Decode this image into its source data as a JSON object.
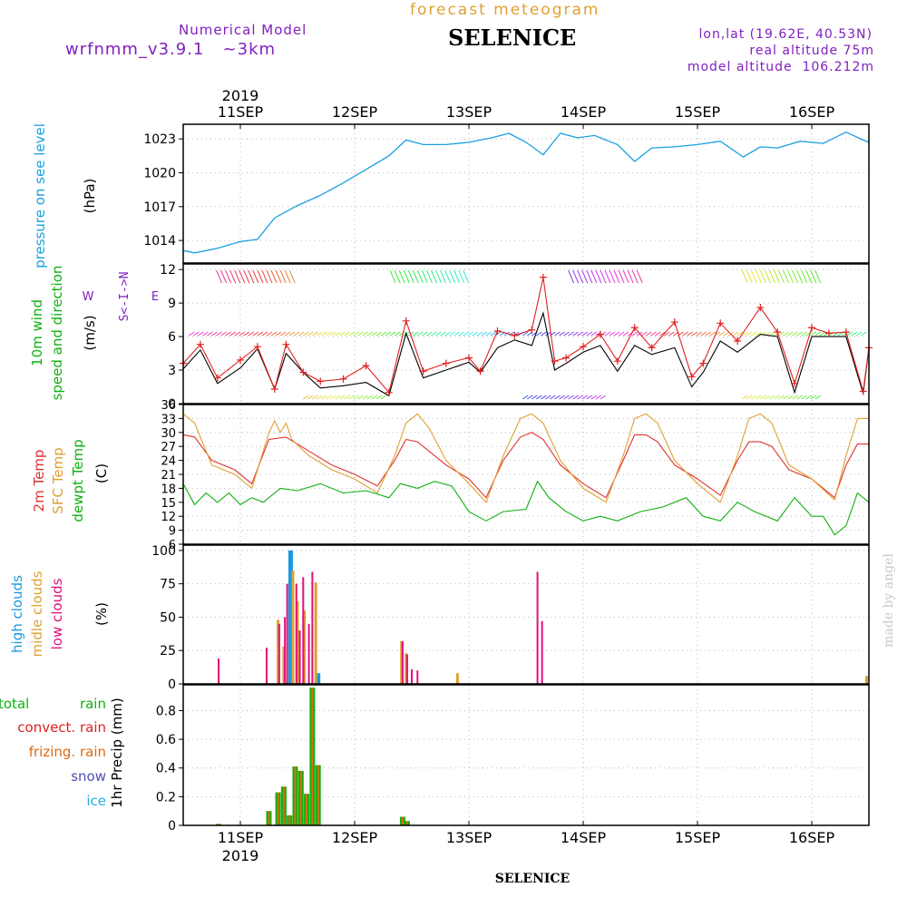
{
  "header": {
    "model_label": "Numerical Model",
    "model_version": "wrfnmm_v3.9.1   ~3km",
    "product": "forecast meteogram",
    "station": "SELENICE",
    "lonlat": "lon,lat (19.62E, 40.53N)",
    "real_altitude": "real altitude 75m",
    "model_altitude": "model altitude  106.212m"
  },
  "footer": {
    "station": "SELENICE",
    "credit": "made by angel"
  },
  "time_axis": {
    "year": "2019",
    "start_day": 10.5,
    "end_day": 16.5,
    "ticks": [
      {
        "day": 11,
        "label": "11SEP"
      },
      {
        "day": 12,
        "label": "12SEP"
      },
      {
        "day": 13,
        "label": "13SEP"
      },
      {
        "day": 14,
        "label": "14SEP"
      },
      {
        "day": 15,
        "label": "15SEP"
      },
      {
        "day": 16,
        "label": "16SEP"
      }
    ]
  },
  "colors": {
    "pressure": "#1aa0e0",
    "wind_label": "#10b010",
    "gust": "#e02020",
    "temp2m": "#e03030",
    "sfc_temp": "#e0a030",
    "dewpt": "#10b010",
    "high_clouds": "#1a9ae0",
    "mid_clouds": "#e0a030",
    "low_clouds": "#e0107a",
    "total_rain": "#10b010",
    "convect_rain": "#e02020",
    "frizing_rain": "#e06a10",
    "snow": "#5050b0",
    "ice": "#20b0e0",
    "purple": "#8020c0",
    "title_gold": "#e0a030"
  },
  "chart_data": [
    {
      "type": "line",
      "title": "pressure on see level",
      "ylabel": "(hPa)",
      "ylim": [
        1012,
        1024.3
      ],
      "yticks": [
        1014,
        1017,
        1020,
        1023
      ],
      "x": [
        10.5,
        10.6,
        10.8,
        11.0,
        11.15,
        11.3,
        11.5,
        11.7,
        11.9,
        12.1,
        12.3,
        12.45,
        12.6,
        12.8,
        13.0,
        13.2,
        13.35,
        13.5,
        13.65,
        13.8,
        13.95,
        14.1,
        14.3,
        14.45,
        14.6,
        14.8,
        15.0,
        15.2,
        15.4,
        15.55,
        15.7,
        15.9,
        16.1,
        16.3,
        16.45,
        16.5
      ],
      "series": [
        {
          "values": [
            1013.1,
            1012.9,
            1013.3,
            1013.9,
            1014.1,
            1016.0,
            1017.1,
            1018.0,
            1019.1,
            1020.3,
            1021.5,
            1022.9,
            1022.5,
            1022.5,
            1022.7,
            1023.1,
            1023.5,
            1022.7,
            1021.6,
            1023.5,
            1023.1,
            1023.3,
            1022.5,
            1021.0,
            1022.2,
            1022.3,
            1022.5,
            1022.8,
            1021.4,
            1022.3,
            1022.2,
            1022.8,
            1022.6,
            1023.6,
            1022.9,
            1022.7
          ]
        }
      ]
    },
    {
      "type": "line",
      "title": "10m wind speed and direction",
      "ylabel": "(m/s)",
      "ylim": [
        0,
        12.5
      ],
      "yticks": [
        0,
        3,
        6,
        9,
        12
      ],
      "compass": [
        "N",
        "W",
        "E",
        "S"
      ],
      "x": [
        10.5,
        10.65,
        10.8,
        11.0,
        11.15,
        11.3,
        11.4,
        11.55,
        11.7,
        11.9,
        12.1,
        12.3,
        12.45,
        12.6,
        12.8,
        13.0,
        13.1,
        13.25,
        13.4,
        13.55,
        13.65,
        13.75,
        13.85,
        14.0,
        14.15,
        14.3,
        14.45,
        14.6,
        14.8,
        14.95,
        15.05,
        15.2,
        15.35,
        15.55,
        15.7,
        15.85,
        16.0,
        16.15,
        16.3,
        16.45,
        16.5
      ],
      "series": [
        {
          "values": [
            3.1,
            4.8,
            1.8,
            3.2,
            4.9,
            1.3,
            4.5,
            2.8,
            1.4,
            1.6,
            1.9,
            0.7,
            6.3,
            2.3,
            3.0,
            3.7,
            2.8,
            5.0,
            5.7,
            5.2,
            8.1,
            3.0,
            3.6,
            4.6,
            5.2,
            2.9,
            5.2,
            4.4,
            5.0,
            1.5,
            2.8,
            5.6,
            4.6,
            6.2,
            6.0,
            1.0,
            6.0,
            6.0,
            6.0,
            0.9,
            5.0
          ]
        },
        {
          "values": [
            3.6,
            5.3,
            2.3,
            3.9,
            5.1,
            1.3,
            5.3,
            2.8,
            2.0,
            2.2,
            3.4,
            1.0,
            7.4,
            2.9,
            3.6,
            4.1,
            2.9,
            6.5,
            6.1,
            6.6,
            11.3,
            3.8,
            4.1,
            5.1,
            6.2,
            3.8,
            6.8,
            5.0,
            7.3,
            2.4,
            3.6,
            7.2,
            5.6,
            8.6,
            6.4,
            1.8,
            6.8,
            6.3,
            6.4,
            1.1,
            5.0
          ]
        }
      ]
    },
    {
      "type": "line",
      "title": "2m Temp / SFC Temp / dewpt Temp",
      "ylabel": "(C)",
      "ylim": [
        6,
        36
      ],
      "yticks": [
        6,
        9,
        12,
        15,
        18,
        21,
        24,
        27,
        30,
        33,
        36
      ],
      "series": [
        {
          "name": "2m Temp",
          "x": [
            10.5,
            10.6,
            10.75,
            10.95,
            11.1,
            11.25,
            11.4,
            11.6,
            11.8,
            12.0,
            12.2,
            12.35,
            12.45,
            12.55,
            12.65,
            12.8,
            13.0,
            13.15,
            13.3,
            13.45,
            13.55,
            13.65,
            13.8,
            14.0,
            14.2,
            14.35,
            14.45,
            14.55,
            14.65,
            14.8,
            15.0,
            15.2,
            15.35,
            15.45,
            15.55,
            15.65,
            15.8,
            16.0,
            16.2,
            16.3,
            16.4,
            16.5
          ],
          "values": [
            29.5,
            29,
            24,
            22,
            19,
            28.5,
            29,
            26,
            23,
            21,
            18.5,
            24,
            28.5,
            28,
            26,
            23,
            20,
            16,
            24,
            29,
            30,
            28.5,
            23,
            19,
            16,
            24,
            29.5,
            29.5,
            28,
            23,
            20,
            16.5,
            24,
            28,
            28,
            27,
            22,
            20,
            16,
            23,
            27.5,
            27.5
          ]
        },
        {
          "name": "SFC Temp",
          "x": [
            10.5,
            10.6,
            10.75,
            10.95,
            11.1,
            11.25,
            11.3,
            11.35,
            11.4,
            11.45,
            11.6,
            11.8,
            12.0,
            12.2,
            12.35,
            12.45,
            12.55,
            12.65,
            12.8,
            13.0,
            13.15,
            13.3,
            13.45,
            13.55,
            13.65,
            13.8,
            14.0,
            14.2,
            14.35,
            14.45,
            14.55,
            14.65,
            14.8,
            15.0,
            15.2,
            15.35,
            15.45,
            15.55,
            15.65,
            15.8,
            16.0,
            16.2,
            16.3,
            16.4,
            16.5
          ],
          "values": [
            34,
            32,
            23,
            21,
            18,
            30,
            32.5,
            30,
            32,
            28.5,
            25,
            22,
            20,
            17,
            25,
            32,
            34,
            31,
            24,
            19,
            15,
            25,
            33,
            34,
            32,
            24,
            18,
            15,
            25,
            33,
            34,
            32,
            24,
            19,
            15,
            25,
            33,
            34,
            32,
            23,
            20,
            15.5,
            25,
            33,
            33
          ]
        },
        {
          "name": "dewpt Temp",
          "x": [
            10.5,
            10.6,
            10.7,
            10.8,
            10.9,
            11.0,
            11.1,
            11.2,
            11.35,
            11.5,
            11.7,
            11.9,
            12.1,
            12.3,
            12.4,
            12.55,
            12.7,
            12.85,
            13.0,
            13.15,
            13.3,
            13.5,
            13.6,
            13.7,
            13.85,
            14.0,
            14.15,
            14.3,
            14.5,
            14.7,
            14.9,
            15.05,
            15.2,
            15.35,
            15.5,
            15.7,
            15.85,
            16.0,
            16.1,
            16.2,
            16.3,
            16.4,
            16.5
          ],
          "values": [
            19,
            14.5,
            17,
            15,
            17,
            14.5,
            16,
            15,
            18,
            17.5,
            19,
            17,
            17.5,
            16,
            19,
            18,
            19.5,
            18.5,
            13,
            11,
            13,
            13.5,
            19.5,
            16,
            13,
            11,
            12,
            11,
            13,
            14,
            16,
            12,
            11,
            15,
            13,
            11,
            16,
            12,
            12,
            8,
            10,
            17,
            15
          ]
        }
      ]
    },
    {
      "type": "bar",
      "title": "high clouds / midle clouds / low clouds",
      "ylabel": "(%)",
      "ylim": [
        0,
        104
      ],
      "yticks": [
        0,
        25,
        50,
        75,
        100
      ],
      "series": [
        {
          "name": "high clouds",
          "x": [
            11.44,
            11.68
          ],
          "values": [
            100,
            8
          ]
        },
        {
          "name": "midle clouds",
          "x": [
            11.33,
            11.38,
            11.46,
            11.5,
            11.56,
            11.66,
            12.41,
            12.45,
            12.9,
            16.48
          ],
          "values": [
            48,
            28,
            85,
            62,
            55,
            76,
            32,
            23,
            8,
            6
          ]
        },
        {
          "name": "low clouds",
          "x": [
            10.81,
            11.23,
            11.34,
            11.39,
            11.41,
            11.49,
            11.52,
            11.55,
            11.6,
            11.63,
            12.42,
            12.46,
            12.5,
            12.55,
            13.6,
            13.64
          ],
          "values": [
            19,
            27,
            45,
            50,
            75,
            75,
            40,
            80,
            45,
            84,
            32,
            22,
            11,
            10,
            84,
            47
          ]
        }
      ]
    },
    {
      "type": "bar",
      "title": "1hr Precip",
      "ylabel": "1hr Precip (mm)",
      "ylim": [
        0,
        0.98
      ],
      "yticks": [
        0,
        0.2,
        0.4,
        0.6,
        0.8
      ],
      "legend": [
        "total",
        "rain",
        "convect. rain",
        "frizing. rain",
        "snow",
        "ice"
      ],
      "x": [
        10.81,
        11.25,
        11.33,
        11.38,
        11.43,
        11.48,
        11.53,
        11.58,
        11.63,
        11.68,
        12.42,
        12.46
      ],
      "series": [
        {
          "name": "total rain",
          "values": [
            0.01,
            0.1,
            0.23,
            0.27,
            0.07,
            0.41,
            0.38,
            0.22,
            0.96,
            0.42,
            0.06,
            0.03
          ]
        }
      ]
    }
  ]
}
